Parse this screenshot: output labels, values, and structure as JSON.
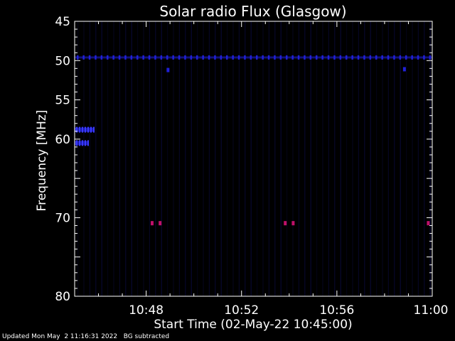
{
  "chart_data": {
    "type": "heatmap",
    "title": "Solar radio Flux (Glasgow)",
    "xlabel": "Start Time (02-May-22 10:45:00)",
    "ylabel": "Frequency [MHz]",
    "x_start_minutes": 645,
    "xlim": [
      "10:45",
      "11:00"
    ],
    "ylim": [
      45,
      80
    ],
    "y_ticks": [
      45,
      50,
      55,
      60,
      65,
      70,
      75,
      80
    ],
    "y_tick_labels": [
      "45",
      "50",
      "55",
      "60",
      "",
      "70",
      "",
      "80"
    ],
    "x_tick_labels": [
      "10:48",
      "10:52",
      "10:56",
      "11:00"
    ],
    "grid": false,
    "colors": {
      "background": "#000000",
      "faint": "#0a0a3c",
      "band": "#2020d8",
      "hot": "#c0106a"
    },
    "features": [
      {
        "name": "interference-band",
        "freq_mhz": 49.6,
        "time_start": "10:45",
        "time_end": "11:00",
        "color": "band"
      },
      {
        "name": "burst-blob",
        "freq_mhz": 58.8,
        "time_start": "10:45",
        "time_end": "10:45:50",
        "color": "band"
      },
      {
        "name": "burst-blob",
        "freq_mhz": 60.5,
        "time_start": "10:45",
        "time_end": "10:45:35",
        "color": "band"
      },
      {
        "name": "spike",
        "freq_mhz": 51.2,
        "time": "10:48:55",
        "color": "band"
      },
      {
        "name": "spike",
        "freq_mhz": 51.1,
        "time": "10:58:50",
        "color": "band"
      },
      {
        "name": "hot-spot",
        "freq_mhz": 70.7,
        "time": "10:48:15",
        "color": "hot"
      },
      {
        "name": "hot-spot",
        "freq_mhz": 70.7,
        "time": "10:48:35",
        "color": "hot"
      },
      {
        "name": "hot-spot",
        "freq_mhz": 70.7,
        "time": "10:53:50",
        "color": "hot"
      },
      {
        "name": "hot-spot",
        "freq_mhz": 70.7,
        "time": "10:54:10",
        "color": "hot"
      },
      {
        "name": "hot-spot",
        "freq_mhz": 70.7,
        "time": "10:59:50",
        "color": "hot"
      }
    ]
  },
  "footer": {
    "updated": "Updated Mon May  2 11:16:31 2022",
    "note": "BG subtracted"
  }
}
